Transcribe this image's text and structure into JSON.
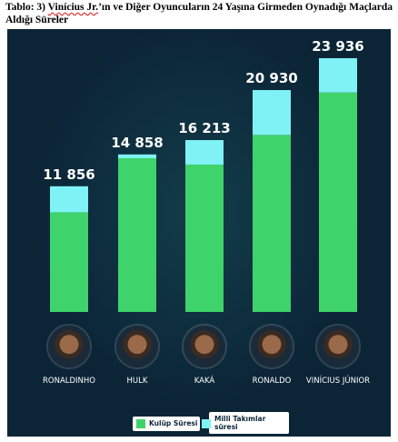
{
  "caption": {
    "prefix": "Tablo: 3) ",
    "underlined": "Vinícius Jr.",
    "rest": "’ın ve Diğer Oyuncuların 24 Yaşına Girmeden Oynadığı Maçlarda Aldığı Süreler"
  },
  "colors": {
    "club": "#3fd36b",
    "national": "#7ff2f5",
    "background": "#0b2537"
  },
  "chart_data": {
    "type": "bar",
    "stacked": true,
    "categories": [
      "RONALDINHO",
      "HULK",
      "KAKÁ",
      "RONALDO",
      "VINÍCIUS JÚNIOR"
    ],
    "totals_labels": [
      "11 856",
      "14 858",
      "16 213",
      "20 930",
      "23 936"
    ],
    "series": [
      {
        "name": "Kulüp Süresi",
        "values": [
          9400,
          14500,
          13900,
          16700,
          20700
        ]
      },
      {
        "name": "Milli Takımlar süresi",
        "values": [
          2456,
          358,
          2313,
          4230,
          3236
        ]
      }
    ],
    "ylim": [
      0,
      23936
    ],
    "legend": "bottom-center",
    "grid": false
  },
  "legend": {
    "club": "Kulüp Süresi",
    "national_line1": "Milli Takımlar",
    "national_line2": "süresi"
  }
}
